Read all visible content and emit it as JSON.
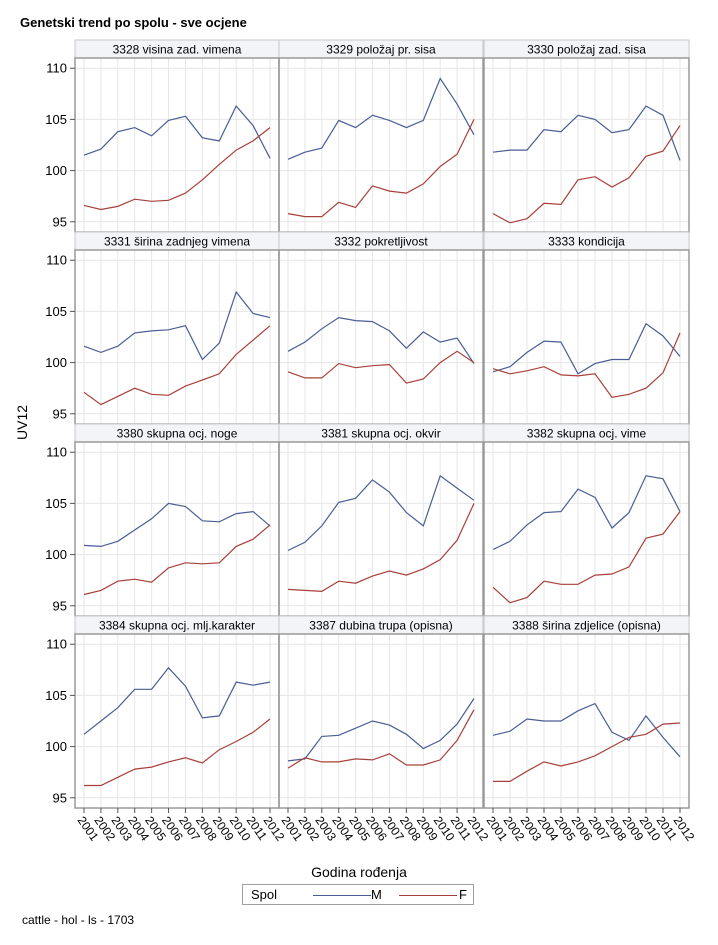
{
  "title": "Genetski trend po spolu - sve ocjene",
  "footnote": "cattle - hol - ls - 1703",
  "colors": {
    "M": "#4a5d95",
    "F": "#a8403a",
    "panel_header": "#f2f4f7",
    "grid": "#e6e6e6",
    "frame": "#9a9a9a"
  },
  "legend": {
    "title": "Spol",
    "items": [
      {
        "name": "M"
      },
      {
        "name": "F"
      }
    ]
  },
  "chart_data": {
    "type": "line",
    "xlabel": "Godina rođenja",
    "ylabel": "UV12",
    "x": [
      "2001",
      "2002",
      "2003",
      "2004",
      "2005",
      "2006",
      "2007",
      "2008",
      "2009",
      "2010",
      "2011",
      "2012"
    ],
    "ylim": [
      94,
      111
    ],
    "yticks": [
      95,
      100,
      105,
      110
    ],
    "grid": true,
    "legend_position": "bottom",
    "panels": [
      {
        "title": "3328 visina zad. vimena",
        "M": [
          101.5,
          102.1,
          103.8,
          104.2,
          103.4,
          104.9,
          105.3,
          103.2,
          102.9,
          106.3,
          104.4,
          101.2
        ],
        "F": [
          96.6,
          96.2,
          96.5,
          97.2,
          97.0,
          97.1,
          97.8,
          99.1,
          100.6,
          102.0,
          102.9,
          104.2
        ]
      },
      {
        "title": "3329 položaj pr. sisa",
        "M": [
          101.1,
          101.8,
          102.2,
          104.9,
          104.2,
          105.4,
          104.9,
          104.2,
          104.9,
          109.0,
          106.5,
          103.5
        ],
        "F": [
          95.8,
          95.5,
          95.5,
          96.9,
          96.4,
          98.5,
          98.0,
          97.8,
          98.7,
          100.4,
          101.6,
          105.0
        ]
      },
      {
        "title": "3330 položaj zad. sisa",
        "M": [
          101.8,
          102.0,
          102.0,
          104.0,
          103.8,
          105.4,
          105.0,
          103.7,
          104.0,
          106.3,
          105.4,
          101.0
        ],
        "F": [
          95.8,
          94.9,
          95.3,
          96.8,
          96.7,
          99.1,
          99.4,
          98.4,
          99.3,
          101.4,
          101.9,
          104.4
        ]
      },
      {
        "title": "3331 širina zadnjeg vimena",
        "M": [
          101.6,
          101.0,
          101.6,
          102.9,
          103.1,
          103.2,
          103.6,
          100.3,
          101.9,
          106.9,
          104.8,
          104.4
        ],
        "F": [
          97.1,
          95.9,
          96.7,
          97.5,
          96.9,
          96.8,
          97.7,
          98.3,
          98.9,
          100.8,
          102.2,
          103.6
        ]
      },
      {
        "title": "3332 pokretljivost",
        "M": [
          101.1,
          102.0,
          103.3,
          104.4,
          104.1,
          104.0,
          103.1,
          101.4,
          103.0,
          102.0,
          102.4,
          99.9
        ],
        "F": [
          99.1,
          98.5,
          98.5,
          99.9,
          99.5,
          99.7,
          99.8,
          98.0,
          98.4,
          100.0,
          101.1,
          100.0
        ]
      },
      {
        "title": "3333 kondicija",
        "M": [
          99.1,
          99.6,
          101.0,
          102.1,
          102.0,
          98.9,
          99.9,
          100.3,
          100.3,
          103.8,
          102.6,
          100.6
        ],
        "F": [
          99.4,
          98.9,
          99.2,
          99.6,
          98.8,
          98.7,
          98.9,
          96.6,
          96.9,
          97.5,
          99.0,
          102.9
        ]
      },
      {
        "title": "3380 skupna ocj. noge",
        "M": [
          100.9,
          100.8,
          101.3,
          102.4,
          103.5,
          105.0,
          104.7,
          103.3,
          103.2,
          104.0,
          104.2,
          102.8
        ],
        "F": [
          96.1,
          96.5,
          97.4,
          97.6,
          97.3,
          98.7,
          99.2,
          99.1,
          99.2,
          100.8,
          101.5,
          102.9
        ]
      },
      {
        "title": "3381 skupna ocj. okvir",
        "M": [
          100.4,
          101.2,
          102.8,
          105.1,
          105.5,
          107.3,
          106.1,
          104.1,
          102.8,
          107.7,
          106.5,
          105.3
        ],
        "F": [
          96.6,
          96.5,
          96.4,
          97.4,
          97.2,
          97.9,
          98.4,
          98.0,
          98.6,
          99.5,
          101.4,
          105.0
        ]
      },
      {
        "title": "3382 skupna ocj. vime",
        "M": [
          100.5,
          101.3,
          102.9,
          104.1,
          104.2,
          106.4,
          105.6,
          102.6,
          104.1,
          107.7,
          107.4,
          104.2
        ],
        "F": [
          96.8,
          95.3,
          95.8,
          97.4,
          97.1,
          97.1,
          98.0,
          98.1,
          98.8,
          101.6,
          102.0,
          104.2
        ]
      },
      {
        "title": "3384 skupna ocj. mlj.karakter",
        "M": [
          101.2,
          102.5,
          103.8,
          105.6,
          105.6,
          107.7,
          105.9,
          102.8,
          103.0,
          106.3,
          106.0,
          106.3
        ],
        "F": [
          96.2,
          96.2,
          97.0,
          97.8,
          98.0,
          98.5,
          98.9,
          98.4,
          99.7,
          100.5,
          101.4,
          102.7
        ]
      },
      {
        "title": "3387 dubina trupa (opisna)",
        "M": [
          98.6,
          98.8,
          101.0,
          101.1,
          101.8,
          102.5,
          102.1,
          101.2,
          99.8,
          100.6,
          102.2,
          104.7
        ],
        "F": [
          97.9,
          98.9,
          98.5,
          98.5,
          98.8,
          98.7,
          99.3,
          98.2,
          98.2,
          98.7,
          100.6,
          103.6
        ]
      },
      {
        "title": "3388 širina zdjelice (opisna)",
        "M": [
          101.1,
          101.5,
          102.7,
          102.5,
          102.5,
          103.5,
          104.2,
          101.4,
          100.6,
          103.0,
          100.9,
          99.0
        ],
        "F": [
          96.6,
          96.6,
          97.6,
          98.5,
          98.1,
          98.5,
          99.1,
          100.0,
          100.9,
          101.2,
          102.2,
          102.3
        ]
      }
    ]
  }
}
